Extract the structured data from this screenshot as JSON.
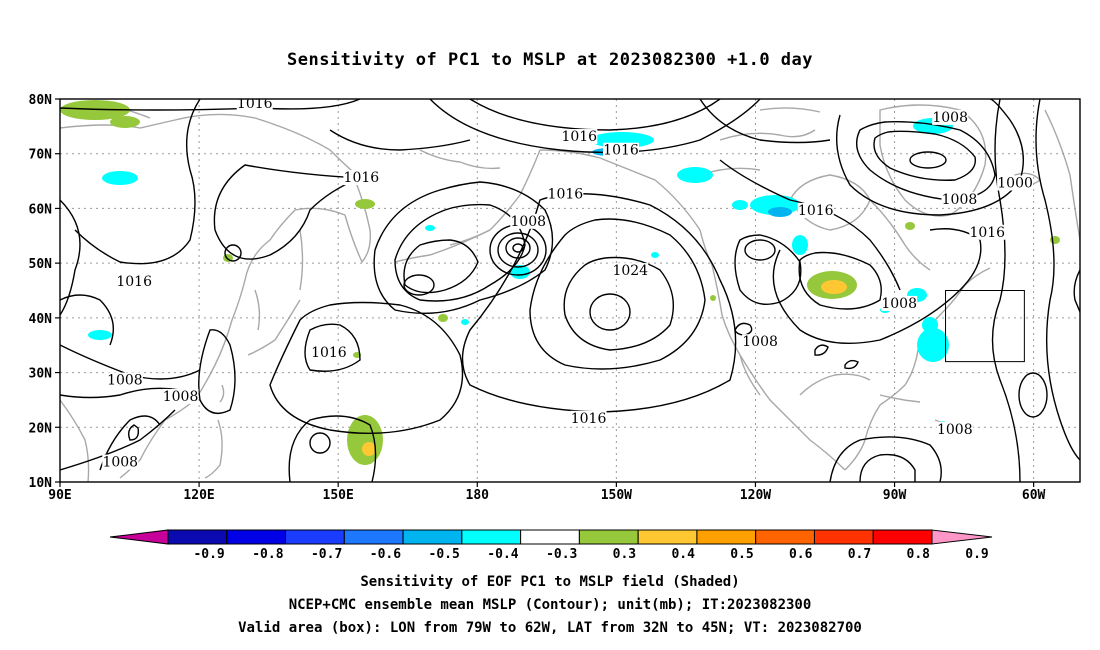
{
  "title": "Sensitivity of PC1 to MSLP at 2023082300 +1.0 day",
  "map": {
    "lat_labels": [
      "80N",
      "70N",
      "60N",
      "50N",
      "40N",
      "30N",
      "20N",
      "10N"
    ],
    "lon_labels": [
      "90E",
      "120E",
      "150E",
      "180",
      "150W",
      "120W",
      "90W",
      "60W"
    ],
    "extent": {
      "lon_min_east": 90,
      "lon_max_east": 310,
      "lat_min": 10,
      "lat_max": 80
    },
    "valid_box": {
      "lon_west": "79W",
      "lon_east": "62W",
      "lat_south": "32N",
      "lat_north": "45N"
    },
    "contour_labels": [
      {
        "text": "1016",
        "lon": 132,
        "lat": 78.5
      },
      {
        "text": "1016",
        "lon": 202,
        "lat": 72.5
      },
      {
        "text": "1016",
        "lon": 211,
        "lat": 70
      },
      {
        "text": "1016",
        "lon": 155,
        "lat": 65
      },
      {
        "text": "1016",
        "lon": 106,
        "lat": 46
      },
      {
        "text": "1016",
        "lon": 199,
        "lat": 62
      },
      {
        "text": "1008",
        "lon": 191,
        "lat": 57
      },
      {
        "text": "1024",
        "lon": 213,
        "lat": 48
      },
      {
        "text": "1016",
        "lon": 253,
        "lat": 59
      },
      {
        "text": "1008",
        "lon": 282,
        "lat": 76
      },
      {
        "text": "1000",
        "lon": 296,
        "lat": 64
      },
      {
        "text": "1008",
        "lon": 284,
        "lat": 61
      },
      {
        "text": "1016",
        "lon": 290,
        "lat": 55
      },
      {
        "text": "1008",
        "lon": 271,
        "lat": 42
      },
      {
        "text": "1008",
        "lon": 241,
        "lat": 35
      },
      {
        "text": "1016",
        "lon": 148,
        "lat": 33
      },
      {
        "text": "1008",
        "lon": 104,
        "lat": 28
      },
      {
        "text": "1008",
        "lon": 116,
        "lat": 25
      },
      {
        "text": "1016",
        "lon": 204,
        "lat": 21
      },
      {
        "text": "1008",
        "lon": 103,
        "lat": 13
      },
      {
        "text": "1008",
        "lon": 283,
        "lat": 19
      }
    ]
  },
  "colorbar": {
    "labels": [
      "-0.9",
      "-0.8",
      "-0.7",
      "-0.6",
      "-0.5",
      "-0.4",
      "-0.3",
      "0.3",
      "0.4",
      "0.5",
      "0.6",
      "0.7",
      "0.8",
      "0.9"
    ],
    "colors": [
      "#0a0ab0",
      "#0000e6",
      "#1a3cff",
      "#1e78ff",
      "#00b4f0",
      "#00ffff",
      "#ffffff",
      "#96c83c",
      "#ffc832",
      "#ffa000",
      "#ff6400",
      "#ff3200",
      "#ff0000"
    ],
    "low_arrow_color": "#c8009a",
    "high_arrow_color": "#ff96c8"
  },
  "captions": {
    "line1": "Sensitivity of EOF PC1 to MSLP field (Shaded)",
    "line2": "NCEP+CMC ensemble mean MSLP (Contour); unit(mb); IT:2023082300",
    "line3": "Valid area (box): LON from 79W to 62W, LAT from 32N to 45N; VT: 2023082700"
  }
}
